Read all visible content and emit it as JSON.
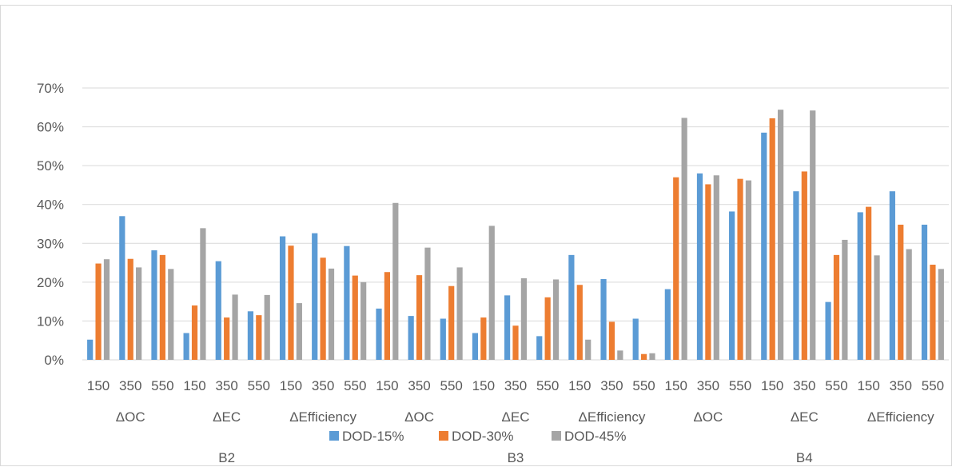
{
  "chart_data": {
    "type": "bar",
    "title": "",
    "xlabel": "",
    "ylabel": "",
    "ylim": [
      0,
      0.7
    ],
    "y_ticks": [
      "0%",
      "10%",
      "20%",
      "30%",
      "40%",
      "50%",
      "60%",
      "70%"
    ],
    "grid": true,
    "legend_position": "bottom",
    "groups": [
      "B2",
      "B3",
      "B4"
    ],
    "metrics": [
      "ΔOC",
      "ΔEC",
      "ΔEfficiency"
    ],
    "categories": [
      "150",
      "350",
      "550",
      "150",
      "350",
      "550",
      "150",
      "350",
      "550",
      "150",
      "350",
      "550",
      "150",
      "350",
      "550",
      "150",
      "350",
      "550",
      "150",
      "350",
      "550",
      "150",
      "350",
      "550",
      "150",
      "350",
      "550"
    ],
    "series": [
      {
        "name": "DOD-15%",
        "color": "#5b9bd5",
        "values": [
          0.052,
          0.37,
          0.282,
          0.069,
          0.254,
          0.125,
          0.318,
          0.326,
          0.293,
          0.132,
          0.113,
          0.106,
          0.069,
          0.166,
          0.061,
          0.27,
          0.208,
          0.106,
          0.182,
          0.48,
          0.382,
          0.585,
          0.434,
          0.149,
          0.38,
          0.434,
          0.348
        ]
      },
      {
        "name": "DOD-30%",
        "color": "#ed7d31",
        "values": [
          0.248,
          0.26,
          0.27,
          0.14,
          0.109,
          0.115,
          0.294,
          0.263,
          0.217,
          0.226,
          0.218,
          0.19,
          0.109,
          0.088,
          0.161,
          0.193,
          0.098,
          0.015,
          0.47,
          0.452,
          0.466,
          0.622,
          0.485,
          0.27,
          0.394,
          0.348,
          0.245
        ]
      },
      {
        "name": "DOD-45%",
        "color": "#a5a5a5",
        "values": [
          0.259,
          0.238,
          0.234,
          0.339,
          0.168,
          0.167,
          0.146,
          0.235,
          0.2,
          0.404,
          0.289,
          0.238,
          0.345,
          0.21,
          0.207,
          0.052,
          0.024,
          0.017,
          0.623,
          0.475,
          0.462,
          0.644,
          0.642,
          0.309,
          0.269,
          0.285,
          0.234
        ]
      }
    ]
  }
}
